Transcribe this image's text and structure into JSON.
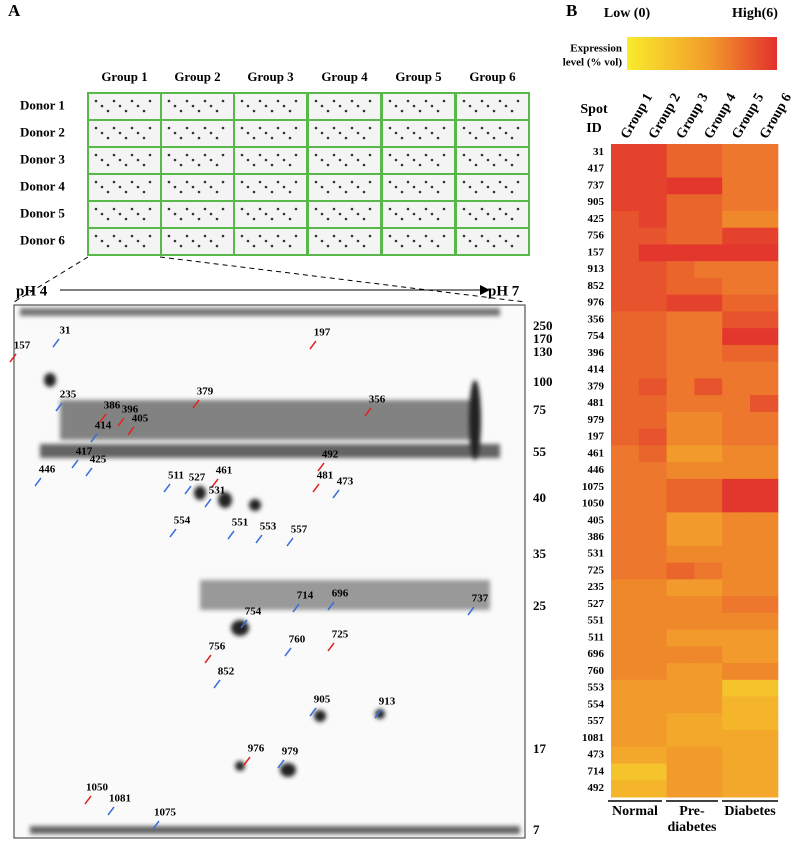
{
  "panel_a": {
    "label": "A",
    "groups": [
      "Group 1",
      "Group 2",
      "Group 3",
      "Group 4",
      "Group 5",
      "Group 6"
    ],
    "donors": [
      "Donor 1",
      "Donor 2",
      "Donor 3",
      "Donor 4",
      "Donor 5",
      "Donor 6"
    ],
    "ph_left": "pH 4",
    "ph_right": "pH 7",
    "mw_labels": [
      "250",
      "170",
      "130",
      "100",
      "75",
      "55",
      "40",
      "35",
      "25",
      "17",
      "7"
    ],
    "spots": [
      {
        "label": "31",
        "color": "blue"
      },
      {
        "label": "157",
        "color": "red"
      },
      {
        "label": "197",
        "color": "red"
      },
      {
        "label": "235",
        "color": "blue"
      },
      {
        "label": "379",
        "color": "red"
      },
      {
        "label": "386",
        "color": "red"
      },
      {
        "label": "396",
        "color": "red"
      },
      {
        "label": "405",
        "color": "red"
      },
      {
        "label": "356",
        "color": "red"
      },
      {
        "label": "414",
        "color": "blue"
      },
      {
        "label": "417",
        "color": "blue"
      },
      {
        "label": "425",
        "color": "blue"
      },
      {
        "label": "446",
        "color": "blue"
      },
      {
        "label": "461",
        "color": "red"
      },
      {
        "label": "492",
        "color": "red"
      },
      {
        "label": "481",
        "color": "red"
      },
      {
        "label": "473",
        "color": "blue"
      },
      {
        "label": "511",
        "color": "blue"
      },
      {
        "label": "527",
        "color": "blue"
      },
      {
        "label": "531",
        "color": "blue"
      },
      {
        "label": "554",
        "color": "blue"
      },
      {
        "label": "551",
        "color": "blue"
      },
      {
        "label": "553",
        "color": "blue"
      },
      {
        "label": "557",
        "color": "blue"
      },
      {
        "label": "714",
        "color": "blue"
      },
      {
        "label": "696",
        "color": "blue"
      },
      {
        "label": "737",
        "color": "blue"
      },
      {
        "label": "754",
        "color": "blue"
      },
      {
        "label": "756",
        "color": "red"
      },
      {
        "label": "760",
        "color": "blue"
      },
      {
        "label": "725",
        "color": "red"
      },
      {
        "label": "852",
        "color": "blue"
      },
      {
        "label": "905",
        "color": "blue"
      },
      {
        "label": "913",
        "color": "blue"
      },
      {
        "label": "976",
        "color": "red"
      },
      {
        "label": "979",
        "color": "blue"
      },
      {
        "label": "1050",
        "color": "red"
      },
      {
        "label": "1081",
        "color": "blue"
      },
      {
        "label": "1075",
        "color": "blue"
      }
    ]
  },
  "panel_b": {
    "label": "B",
    "legend": {
      "low": "Low (0)",
      "high": "High(6)",
      "low_value": 0,
      "high_value": 6,
      "title_lines": [
        "Expression",
        "level (% vol)"
      ]
    },
    "spot_id_header": [
      "Spot",
      "ID"
    ],
    "groups": [
      "Group 1",
      "Group 2",
      "Group 3",
      "Group 4",
      "Group 5",
      "Group 6"
    ],
    "conditions": [
      [
        "Normal"
      ],
      [
        "Pre-",
        "diabetes"
      ],
      [
        "Diabetes"
      ]
    ],
    "spot_ids": [
      "31",
      "417",
      "737",
      "905",
      "425",
      "756",
      "157",
      "913",
      "852",
      "976",
      "356",
      "754",
      "396",
      "414",
      "379",
      "481",
      "979",
      "197",
      "461",
      "446",
      "1075",
      "1050",
      "405",
      "386",
      "531",
      "725",
      "235",
      "527",
      "551",
      "511",
      "696",
      "760",
      "553",
      "554",
      "557",
      "1081",
      "473",
      "714",
      "492"
    ],
    "values": [
      [
        5.5,
        5.5,
        4.5,
        4.5,
        4,
        4
      ],
      [
        5.5,
        5.5,
        4.5,
        4.5,
        4,
        4
      ],
      [
        5.5,
        5.5,
        5.8,
        5.8,
        4,
        4
      ],
      [
        5.5,
        5.5,
        4.5,
        4.5,
        4,
        4
      ],
      [
        5,
        5.5,
        4.5,
        4.5,
        3.5,
        3.5
      ],
      [
        5,
        5,
        4.5,
        4.5,
        5.5,
        5.5
      ],
      [
        5,
        5.8,
        5.8,
        5.8,
        5.8,
        5.8
      ],
      [
        5,
        5,
        4.5,
        4,
        4,
        4
      ],
      [
        5,
        5,
        4.5,
        4.5,
        4,
        4
      ],
      [
        5,
        5,
        5.5,
        5.5,
        4.5,
        4.5
      ],
      [
        4.5,
        4.5,
        4,
        4,
        5,
        5
      ],
      [
        4.5,
        4.5,
        4,
        4,
        5.8,
        5.8
      ],
      [
        4.5,
        4.5,
        4,
        4,
        4.5,
        4.5
      ],
      [
        4.5,
        4.5,
        4,
        4,
        4,
        4
      ],
      [
        4.5,
        5,
        4,
        5,
        4,
        4
      ],
      [
        4.5,
        4.5,
        4,
        4,
        4,
        5
      ],
      [
        4.5,
        4.5,
        3.5,
        3.5,
        4,
        4
      ],
      [
        4.5,
        5,
        3.5,
        3.5,
        4,
        4
      ],
      [
        4,
        4.5,
        3,
        3,
        3.5,
        3.5
      ],
      [
        4,
        4,
        3.5,
        3.5,
        3.5,
        3.5
      ],
      [
        4,
        4,
        4.5,
        4.5,
        5.8,
        5.8
      ],
      [
        4,
        4,
        4.5,
        4.5,
        5.8,
        5.8
      ],
      [
        4,
        4,
        3,
        3,
        3.5,
        3.5
      ],
      [
        4,
        4,
        3,
        3,
        3.5,
        3.5
      ],
      [
        4,
        4,
        3.5,
        3.5,
        3.5,
        3.5
      ],
      [
        4,
        4,
        4.5,
        4,
        3.5,
        3.5
      ],
      [
        3.5,
        3.5,
        3,
        3,
        3.5,
        3.5
      ],
      [
        3.5,
        3.5,
        3.5,
        3.5,
        4,
        4
      ],
      [
        3.5,
        3.5,
        3.5,
        3.5,
        3.5,
        3.5
      ],
      [
        3.5,
        3.5,
        3,
        3,
        3,
        3
      ],
      [
        3.5,
        3.5,
        3.5,
        3.5,
        3,
        3
      ],
      [
        3.5,
        3.5,
        3,
        3,
        3.5,
        3.5
      ],
      [
        3,
        3,
        3,
        3,
        1.5,
        1.5
      ],
      [
        3,
        3,
        3,
        3,
        2,
        2
      ],
      [
        3,
        3,
        2.5,
        2.5,
        2,
        2
      ],
      [
        3,
        3,
        2.5,
        2.5,
        2.5,
        2.5
      ],
      [
        2.5,
        2.5,
        3,
        3,
        2.5,
        2.5
      ],
      [
        1.5,
        1.5,
        3,
        3,
        2.5,
        2.5
      ],
      [
        2,
        2,
        3,
        3,
        2.5,
        2.5
      ]
    ]
  }
}
